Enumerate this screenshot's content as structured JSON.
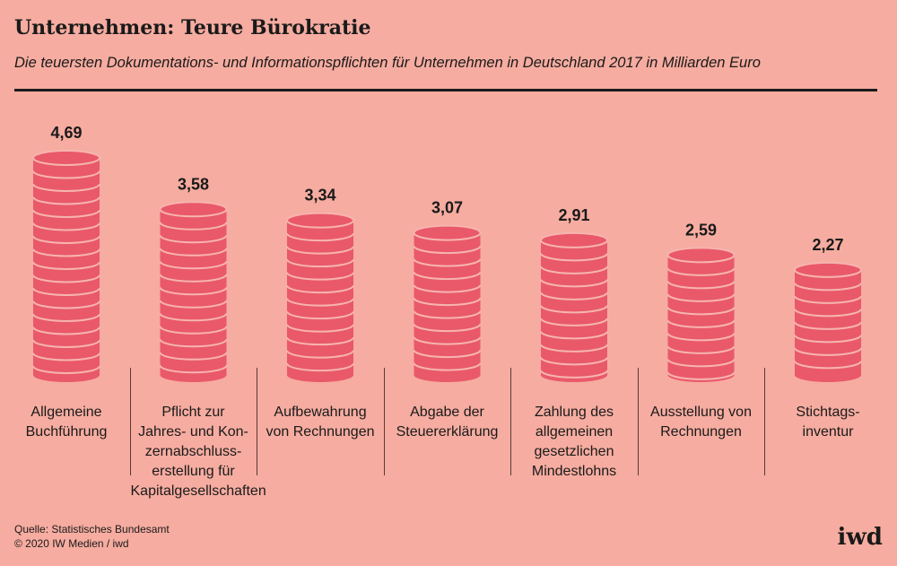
{
  "header": {
    "title": "Unternehmen: Teure Bürokratie",
    "subtitle": "Die teuersten Dokumentations- und Informationspflichten für Unternehmen in Deutschland 2017 in Milliarden Euro"
  },
  "footer": {
    "source_line": "Quelle: Statistisches Bundesamt",
    "copyright_line": "© 2020 IW Medien / iwd",
    "logo": "iwd"
  },
  "colors": {
    "background": "#f6aca0",
    "coin_fill": "#e9596a",
    "coin_line": "#f7b4b0",
    "text": "#1a1a1a"
  },
  "chart_data": {
    "type": "bar",
    "categories": [
      "Allgemeine Buchführung",
      "Pflicht zur Jahres- und Konzernabschlusserstellung für Kapitalgesellschaften",
      "Aufbewahrung von Rechnungen",
      "Abgabe der Steuererklärung",
      "Zahlung des allgemeinen gesetzlichen Mindestlohns",
      "Ausstellung von Rechnungen",
      "Stichtagsinventur"
    ],
    "category_lines": [
      [
        "Allgemeine",
        "Buchführung"
      ],
      [
        "Pflicht zur",
        "Jahres- und Kon-",
        "zernabschluss-",
        "erstellung für",
        "Kapitalgesellschaften"
      ],
      [
        "Aufbewahrung",
        "von Rechnungen"
      ],
      [
        "Abgabe der",
        "Steuererklärung"
      ],
      [
        "Zahlung des",
        "allgemeinen",
        "gesetzlichen",
        "Mindestlohns"
      ],
      [
        "Ausstellung von",
        "Rechnungen"
      ],
      [
        "Stichtags-",
        "inventur"
      ]
    ],
    "values": [
      4.69,
      3.58,
      3.34,
      3.07,
      2.91,
      2.59,
      2.27
    ],
    "value_labels": [
      "4,69",
      "3,58",
      "3,34",
      "3,07",
      "2,91",
      "2,59",
      "2,27"
    ],
    "unit": "Milliarden Euro",
    "ylim": [
      0,
      4.69
    ],
    "grid": false,
    "legend": "none"
  }
}
